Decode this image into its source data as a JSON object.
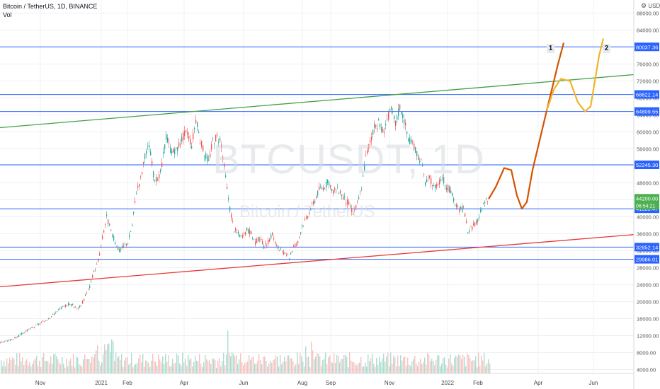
{
  "header": {
    "symbol_line": "Bitcoin / TetherUS, 1D, BINANCE",
    "indicator": "Vol"
  },
  "watermark": {
    "main": "BTCUSDT, 1D",
    "sub": "Bitcoin / TetherUS"
  },
  "price_scale": {
    "unit_label": "USDT",
    "gear_icon": "gear-icon"
  },
  "markers": {
    "path1": "1",
    "path2": "2"
  },
  "chart_data": {
    "type": "candlestick",
    "symbol": "Bitcoin / TetherUS, 1D, BINANCE",
    "x_ticks": [
      "Nov",
      "2021",
      "Feb",
      "Apr",
      "Jun",
      "Aug",
      "Sep",
      "Nov",
      "2022",
      "Feb",
      "Apr",
      "Jun"
    ],
    "y_ticks": [
      4000,
      8000,
      12000,
      16000,
      20000,
      24000,
      28000,
      32000,
      36000,
      40000,
      44000,
      48000,
      52000,
      56000,
      60000,
      64000,
      68000,
      72000,
      76000,
      80000,
      84000,
      88000
    ],
    "ylim": [
      1500,
      89500
    ],
    "horizontal_levels": [
      80037.36,
      68822.14,
      64809.55,
      52245.3,
      41880.47,
      32852.14,
      29986.01
    ],
    "current_price": {
      "value": "44200.00",
      "countdown": "06:54:21"
    },
    "price_path": [
      [
        0,
        10400
      ],
      [
        6,
        10600
      ],
      [
        12,
        10900
      ],
      [
        18,
        11200
      ],
      [
        24,
        11700
      ],
      [
        30,
        12400
      ],
      [
        36,
        13000
      ],
      [
        42,
        13600
      ],
      [
        48,
        14100
      ],
      [
        54,
        14700
      ],
      [
        60,
        15200
      ],
      [
        66,
        15900
      ],
      [
        72,
        16600
      ],
      [
        78,
        17400
      ],
      [
        84,
        18300
      ],
      [
        90,
        18800
      ],
      [
        96,
        19500
      ],
      [
        102,
        19200
      ],
      [
        108,
        18500
      ],
      [
        114,
        19000
      ],
      [
        120,
        21500
      ],
      [
        126,
        23500
      ],
      [
        132,
        27000
      ],
      [
        138,
        29500
      ],
      [
        144,
        35000
      ],
      [
        150,
        40000
      ],
      [
        156,
        36500
      ],
      [
        162,
        34000
      ],
      [
        168,
        32000
      ],
      [
        174,
        33000
      ],
      [
        180,
        34000
      ],
      [
        186,
        38000
      ],
      [
        192,
        46000
      ],
      [
        198,
        49000
      ],
      [
        204,
        54000
      ],
      [
        210,
        57000
      ],
      [
        216,
        50000
      ],
      [
        222,
        48000
      ],
      [
        228,
        52000
      ],
      [
        234,
        59000
      ],
      [
        240,
        56000
      ],
      [
        246,
        55000
      ],
      [
        252,
        57000
      ],
      [
        258,
        59000
      ],
      [
        264,
        60000
      ],
      [
        270,
        57000
      ],
      [
        276,
        63000
      ],
      [
        282,
        58000
      ],
      [
        288,
        55000
      ],
      [
        294,
        53000
      ],
      [
        300,
        58000
      ],
      [
        306,
        59000
      ],
      [
        312,
        57000
      ],
      [
        318,
        49000
      ],
      [
        324,
        42000
      ],
      [
        330,
        37000
      ],
      [
        336,
        36000
      ],
      [
        342,
        35000
      ],
      [
        348,
        37000
      ],
      [
        354,
        36000
      ],
      [
        360,
        34000
      ],
      [
        366,
        35000
      ],
      [
        372,
        33000
      ],
      [
        378,
        34000
      ],
      [
        384,
        36000
      ],
      [
        390,
        33000
      ],
      [
        396,
        32000
      ],
      [
        402,
        31000
      ],
      [
        408,
        30500
      ],
      [
        414,
        33000
      ],
      [
        420,
        34000
      ],
      [
        426,
        38000
      ],
      [
        432,
        39500
      ],
      [
        438,
        42000
      ],
      [
        444,
        44000
      ],
      [
        450,
        46500
      ],
      [
        456,
        47000
      ],
      [
        462,
        48000
      ],
      [
        468,
        46000
      ],
      [
        474,
        46500
      ],
      [
        480,
        46000
      ],
      [
        486,
        44000
      ],
      [
        492,
        43000
      ],
      [
        498,
        41000
      ],
      [
        504,
        43000
      ],
      [
        510,
        47000
      ],
      [
        516,
        54000
      ],
      [
        522,
        58000
      ],
      [
        528,
        61000
      ],
      [
        534,
        62000
      ],
      [
        540,
        60000
      ],
      [
        546,
        63000
      ],
      [
        552,
        65000
      ],
      [
        558,
        62000
      ],
      [
        564,
        66000
      ],
      [
        570,
        63000
      ],
      [
        576,
        58000
      ],
      [
        582,
        57000
      ],
      [
        588,
        55000
      ],
      [
        594,
        53000
      ],
      [
        600,
        48000
      ],
      [
        606,
        49000
      ],
      [
        612,
        47000
      ],
      [
        618,
        48000
      ],
      [
        624,
        49500
      ],
      [
        630,
        47000
      ],
      [
        636,
        46000
      ],
      [
        642,
        43000
      ],
      [
        648,
        41500
      ],
      [
        654,
        42000
      ],
      [
        660,
        36500
      ],
      [
        666,
        37500
      ],
      [
        672,
        38500
      ],
      [
        678,
        41000
      ],
      [
        684,
        43500
      ],
      [
        690,
        44200
      ]
    ],
    "projection_path_1": [
      [
        690,
        44200
      ],
      [
        700,
        47000
      ],
      [
        712,
        51500
      ],
      [
        722,
        51000
      ],
      [
        730,
        45000
      ],
      [
        737,
        41900
      ],
      [
        744,
        43500
      ],
      [
        752,
        51000
      ],
      [
        762,
        58000
      ],
      [
        772,
        65000
      ],
      [
        780,
        70500
      ],
      [
        788,
        76000
      ],
      [
        796,
        81000
      ]
    ],
    "projection_path_2": [
      [
        772,
        65000
      ],
      [
        782,
        70000
      ],
      [
        792,
        72500
      ],
      [
        805,
        72000
      ],
      [
        816,
        67000
      ],
      [
        826,
        64800
      ],
      [
        834,
        66000
      ],
      [
        840,
        72000
      ],
      [
        846,
        78000
      ],
      [
        852,
        82000
      ]
    ],
    "trendlines": {
      "green": {
        "from": [
          0,
          61000
        ],
        "to": [
          895,
          73500
        ]
      },
      "red": {
        "from": [
          0,
          23500
        ],
        "to": [
          895,
          35800
        ]
      }
    },
    "colors": {
      "candle_up": "#26a69a",
      "candle_down": "#ef5350",
      "levels": "#2962ff",
      "green_trendline": "#43a047",
      "red_trendline": "#e53935",
      "projection_1": "#d35400",
      "projection_2": "#f0b429",
      "current_price_label": "#4caf50",
      "level_label": "#2962ff"
    }
  }
}
